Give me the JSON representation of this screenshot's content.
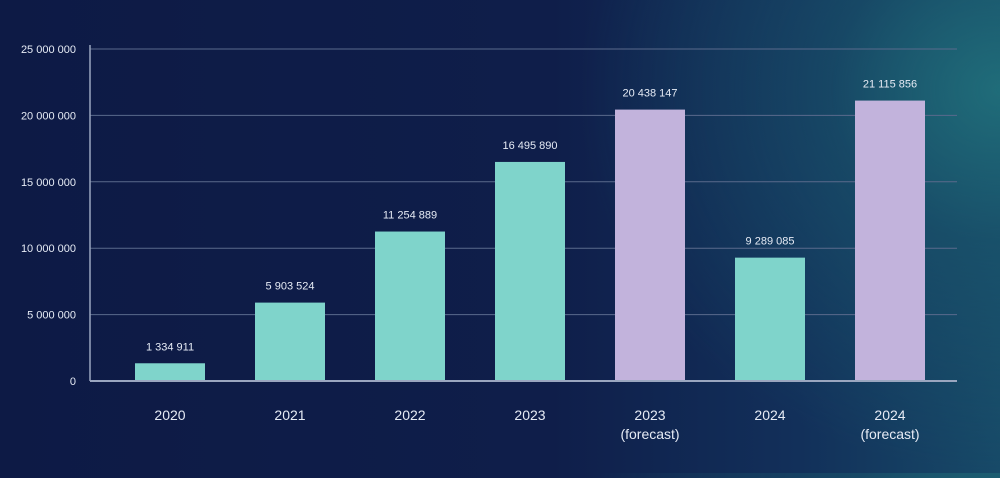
{
  "chart_data": {
    "type": "bar",
    "categories": [
      "2020",
      "2021",
      "2022",
      "2023",
      "2023\n(forecast)",
      "2024",
      "2024\n(forecast)"
    ],
    "values": [
      1334911,
      5903524,
      11254889,
      16495890,
      20438147,
      9289085,
      21115856
    ],
    "value_labels": [
      "1 334 911",
      "5 903 524",
      "11 254 889",
      "16 495 890",
      "20 438 147",
      "9 289 085",
      "21 115 856"
    ],
    "kinds": [
      "actual",
      "actual",
      "actual",
      "actual",
      "forecast",
      "actual",
      "forecast"
    ],
    "y_ticks": [
      0,
      5000000,
      10000000,
      15000000,
      20000000,
      25000000
    ],
    "y_tick_labels": [
      "0",
      "5 000 000",
      "10 000 000",
      "15 000 000",
      "20 000 000",
      "25 000 000"
    ],
    "ylim": [
      0,
      25000000
    ],
    "grid": true,
    "colors": {
      "actual": "#7fd4cb",
      "forecast": "#c2b3dc",
      "grid": "#5a6a8c",
      "axis": "#9aa6bf",
      "text": "#e6ebf5"
    }
  }
}
